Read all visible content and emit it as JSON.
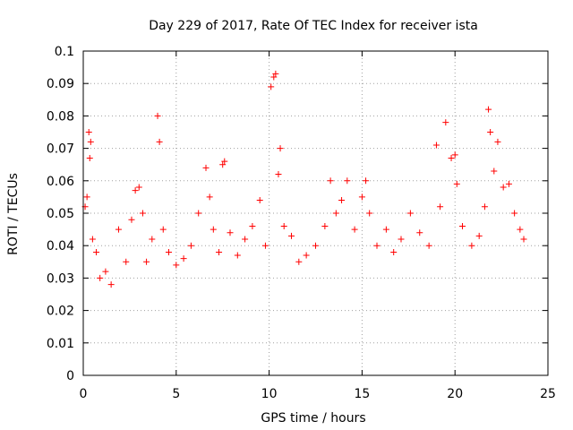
{
  "chart_data": {
    "type": "scatter",
    "title": "Day 229 of 2017, Rate Of TEC Index for receiver ista",
    "xlabel": "GPS time / hours",
    "ylabel": "ROTI / TECUs",
    "xlim": [
      0,
      25
    ],
    "ylim": [
      0,
      0.1
    ],
    "x_ticks": [
      0,
      5,
      10,
      15,
      20,
      25
    ],
    "y_ticks": [
      0,
      0.01,
      0.02,
      0.03,
      0.04,
      0.05,
      0.06,
      0.07,
      0.08,
      0.09,
      0.1
    ],
    "x_tick_labels": [
      "0",
      "5",
      "10",
      "15",
      "20",
      "25"
    ],
    "y_tick_labels": [
      "0",
      "0.01",
      "0.02",
      "0.03",
      "0.04",
      "0.05",
      "0.06",
      "0.07",
      "0.08",
      "0.09",
      "0.1"
    ],
    "grid": true,
    "marker": "+",
    "color": "#ff0000",
    "series": [
      {
        "x": [
          0.1,
          0.2,
          0.3,
          0.35,
          0.4,
          0.5,
          0.7,
          0.9,
          1.2,
          1.5,
          1.9,
          2.3,
          2.6,
          2.8,
          3.0,
          3.2,
          3.4,
          3.7,
          4.0,
          4.1,
          4.3,
          4.6,
          5.0,
          5.4,
          5.8,
          6.2,
          6.6,
          6.8,
          7.0,
          7.3,
          7.5,
          7.6,
          7.9,
          8.3,
          8.7,
          9.1,
          9.5,
          9.8,
          10.1,
          10.25,
          10.35,
          10.5,
          10.6,
          10.8,
          11.2,
          11.6,
          12.0,
          12.5,
          13.0,
          13.3,
          13.6,
          13.9,
          14.2,
          14.6,
          15.0,
          15.2,
          15.4,
          15.8,
          16.3,
          16.7,
          17.1,
          17.6,
          18.1,
          18.6,
          19.0,
          19.2,
          19.5,
          19.8,
          20.0,
          20.1,
          20.4,
          20.9,
          21.3,
          21.6,
          21.8,
          21.9,
          22.1,
          22.3,
          22.6,
          22.9,
          23.2,
          23.5,
          23.7
        ],
        "y": [
          0.052,
          0.055,
          0.075,
          0.067,
          0.072,
          0.042,
          0.038,
          0.03,
          0.032,
          0.028,
          0.045,
          0.035,
          0.048,
          0.057,
          0.058,
          0.05,
          0.035,
          0.042,
          0.08,
          0.072,
          0.045,
          0.038,
          0.034,
          0.036,
          0.04,
          0.05,
          0.064,
          0.055,
          0.045,
          0.038,
          0.065,
          0.066,
          0.044,
          0.037,
          0.042,
          0.046,
          0.054,
          0.04,
          0.089,
          0.092,
          0.093,
          0.062,
          0.07,
          0.046,
          0.043,
          0.035,
          0.037,
          0.04,
          0.046,
          0.06,
          0.05,
          0.054,
          0.06,
          0.045,
          0.055,
          0.06,
          0.05,
          0.04,
          0.045,
          0.038,
          0.042,
          0.05,
          0.044,
          0.04,
          0.071,
          0.052,
          0.078,
          0.067,
          0.068,
          0.059,
          0.046,
          0.04,
          0.043,
          0.052,
          0.082,
          0.075,
          0.063,
          0.072,
          0.058,
          0.059,
          0.05,
          0.045,
          0.042
        ]
      }
    ]
  }
}
